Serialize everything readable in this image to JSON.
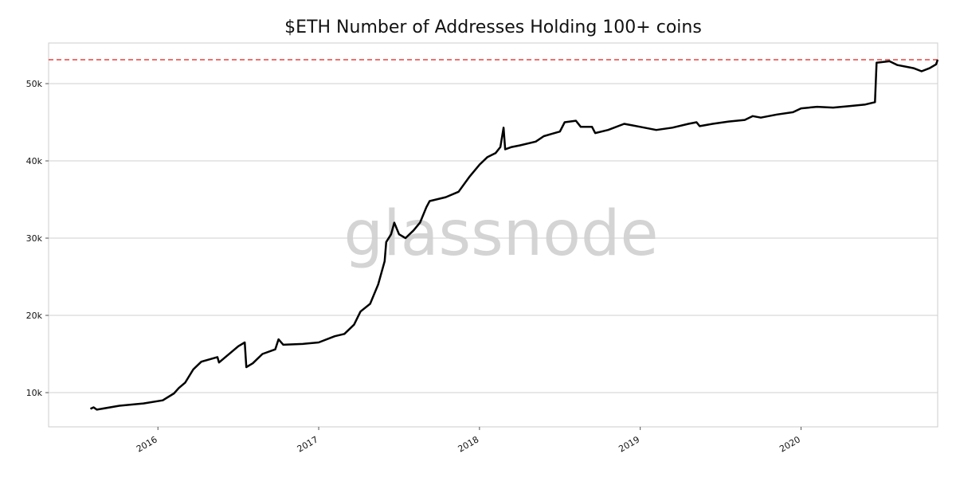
{
  "chart_data": {
    "type": "line",
    "title": "$ETH Number of Addresses Holding 100+ coins",
    "watermark": "glassnode",
    "x": [
      2015.58,
      2015.6,
      2015.62,
      2015.76,
      2015.91,
      2016.03,
      2016.1,
      2016.13,
      2016.17,
      2016.22,
      2016.27,
      2016.37,
      2016.38,
      2016.46,
      2016.5,
      2016.54,
      2016.55,
      2016.59,
      2016.65,
      2016.73,
      2016.75,
      2016.78,
      2016.9,
      2017.0,
      2017.1,
      2017.16,
      2017.22,
      2017.26,
      2017.32,
      2017.37,
      2017.41,
      2017.42,
      2017.45,
      2017.47,
      2017.5,
      2017.54,
      2017.59,
      2017.63,
      2017.67,
      2017.69,
      2017.79,
      2017.87,
      2017.94,
      2018.0,
      2018.05,
      2018.1,
      2018.13,
      2018.15,
      2018.16,
      2018.2,
      2018.25,
      2018.35,
      2018.4,
      2018.45,
      2018.5,
      2018.53,
      2018.6,
      2018.63,
      2018.7,
      2018.72,
      2018.8,
      2018.9,
      2018.95,
      2019.0,
      2019.1,
      2019.2,
      2019.3,
      2019.35,
      2019.37,
      2019.45,
      2019.55,
      2019.65,
      2019.7,
      2019.75,
      2019.85,
      2019.95,
      2020.0,
      2020.1,
      2020.2,
      2020.3,
      2020.4,
      2020.46,
      2020.47,
      2020.55,
      2020.6,
      2020.7,
      2020.75,
      2020.8,
      2020.84,
      2020.85
    ],
    "series": [
      {
        "name": "Addresses Holding 100+ coins",
        "color": "#000000",
        "values": [
          7900,
          8100,
          7800,
          8300,
          8600,
          9000,
          9900,
          10600,
          11300,
          13000,
          14000,
          14600,
          13900,
          15300,
          16000,
          16500,
          13300,
          13800,
          15000,
          15600,
          16900,
          16200,
          16300,
          16500,
          17300,
          17600,
          18800,
          20500,
          21500,
          24000,
          27000,
          29500,
          30500,
          32000,
          30500,
          30000,
          31000,
          32000,
          34000,
          34800,
          35300,
          36000,
          38000,
          39500,
          40500,
          41000,
          41800,
          44300,
          41500,
          41800,
          42000,
          42500,
          43200,
          43500,
          43800,
          45000,
          45200,
          44400,
          44400,
          43600,
          44000,
          44800,
          44600,
          44400,
          44000,
          44300,
          44800,
          45000,
          44500,
          44800,
          45100,
          45300,
          45800,
          45600,
          46000,
          46300,
          46800,
          47000,
          46900,
          47100,
          47300,
          47600,
          52700,
          52900,
          52400,
          52000,
          51600,
          52000,
          52500,
          53100
        ]
      }
    ],
    "reference_line": {
      "value": 53100,
      "color": "#e8413f"
    },
    "xlim": [
      2015.32,
      2020.85
    ],
    "xticks": [
      2016,
      2017,
      2018,
      2019,
      2020
    ],
    "ylim": [
      5570,
      55260
    ],
    "yticks": [
      {
        "value": 10000,
        "label": "10k"
      },
      {
        "value": 20000,
        "label": "20k"
      },
      {
        "value": 30000,
        "label": "30k"
      },
      {
        "value": 40000,
        "label": "40k"
      },
      {
        "value": 50000,
        "label": "50k"
      }
    ],
    "grid": true
  }
}
